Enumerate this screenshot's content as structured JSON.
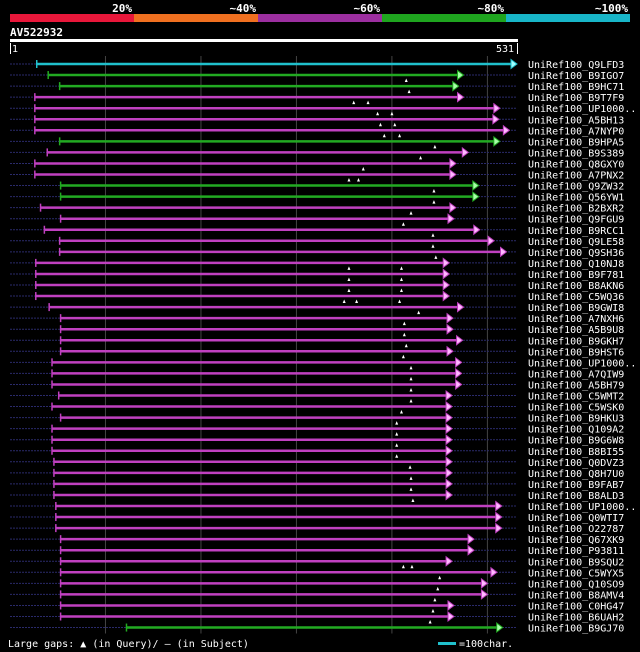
{
  "chart_data": {
    "type": "alignment-overview",
    "query_id": "AV522932",
    "query_start_label": "1",
    "query_end_label": "531",
    "query_length": 531,
    "identity_legend": [
      {
        "label": "20%",
        "color": "#e8173a"
      },
      {
        "label": "~40%",
        "color": "#f07020"
      },
      {
        "label": "~60%",
        "color": "#9c2fa0"
      },
      {
        "label": "~80%",
        "color": "#1fa51f"
      },
      {
        "label": "~100%",
        "color": "#18b5c8"
      }
    ],
    "colors": {
      "pink": "#c040c0",
      "green": "#22aa22",
      "cyan": "#20c0cc",
      "arrow_fill": "#ffb8ff",
      "arrow_fill_green": "#a8ffa8",
      "arrow_fill_cyan": "#a0ffff",
      "dotted": "#2a2a6a",
      "grid": "#444444"
    },
    "grid_positions": [
      100,
      200,
      300,
      400,
      500
    ],
    "hits": [
      {
        "name": "UniRef100_Q9LFD3",
        "color": "cyan",
        "start": 28,
        "end": 531,
        "gaps": []
      },
      {
        "name": "UniRef100_B9IGO7",
        "color": "green",
        "start": 40,
        "end": 475,
        "gaps": [
          415
        ]
      },
      {
        "name": "UniRef100_B9HC71",
        "color": "green",
        "start": 52,
        "end": 470,
        "gaps": [
          418
        ]
      },
      {
        "name": "UniRef100_B9T7F9",
        "color": "pink",
        "start": 26,
        "end": 475,
        "gaps": [
          360,
          375
        ]
      },
      {
        "name": "UniRef100_UP1000..",
        "color": "pink",
        "start": 26,
        "end": 513,
        "gaps": [
          385,
          400
        ]
      },
      {
        "name": "UniRef100_A5BH13",
        "color": "pink",
        "start": 26,
        "end": 512,
        "gaps": [
          388,
          403
        ]
      },
      {
        "name": "UniRef100_A7NYP0",
        "color": "pink",
        "start": 26,
        "end": 523,
        "gaps": [
          392,
          408
        ]
      },
      {
        "name": "UniRef100_B9HPA5",
        "color": "green",
        "start": 52,
        "end": 513,
        "gaps": [
          445
        ]
      },
      {
        "name": "UniRef100_B9S389",
        "color": "pink",
        "start": 39,
        "end": 480,
        "gaps": [
          430
        ]
      },
      {
        "name": "UniRef100_Q8GXY0",
        "color": "pink",
        "start": 26,
        "end": 467,
        "gaps": [
          370
        ]
      },
      {
        "name": "UniRef100_A7PNX2",
        "color": "pink",
        "start": 26,
        "end": 467,
        "gaps": [
          355,
          365
        ]
      },
      {
        "name": "UniRef100_Q9ZW32",
        "color": "green",
        "start": 53,
        "end": 491,
        "gaps": [
          444
        ]
      },
      {
        "name": "UniRef100_Q56YW1",
        "color": "green",
        "start": 53,
        "end": 491,
        "gaps": [
          444
        ]
      },
      {
        "name": "UniRef100_B2BXR2",
        "color": "pink",
        "start": 32,
        "end": 467,
        "gaps": [
          420
        ]
      },
      {
        "name": "UniRef100_Q9FGU9",
        "color": "pink",
        "start": 53,
        "end": 465,
        "gaps": [
          412
        ]
      },
      {
        "name": "UniRef100_B9RCC1",
        "color": "pink",
        "start": 36,
        "end": 492,
        "gaps": [
          443
        ]
      },
      {
        "name": "UniRef100_Q9LE58",
        "color": "pink",
        "start": 52,
        "end": 507,
        "gaps": [
          443
        ]
      },
      {
        "name": "UniRef100_Q9SH36",
        "color": "pink",
        "start": 52,
        "end": 520,
        "gaps": [
          446
        ]
      },
      {
        "name": "UniRef100_Q10NJ8",
        "color": "pink",
        "start": 27,
        "end": 460,
        "gaps": [
          355,
          410
        ]
      },
      {
        "name": "UniRef100_B9F781",
        "color": "pink",
        "start": 27,
        "end": 460,
        "gaps": [
          355,
          410
        ]
      },
      {
        "name": "UniRef100_B8AKN6",
        "color": "pink",
        "start": 27,
        "end": 460,
        "gaps": [
          355,
          410
        ]
      },
      {
        "name": "UniRef100_C5WQ36",
        "color": "pink",
        "start": 27,
        "end": 460,
        "gaps": [
          350,
          363,
          408
        ]
      },
      {
        "name": "UniRef100_B9GWI8",
        "color": "pink",
        "start": 41,
        "end": 475,
        "gaps": [
          428
        ]
      },
      {
        "name": "UniRef100_A7NXH6",
        "color": "pink",
        "start": 53,
        "end": 464,
        "gaps": [
          413
        ]
      },
      {
        "name": "UniRef100_A5B9U8",
        "color": "pink",
        "start": 53,
        "end": 464,
        "gaps": [
          413
        ]
      },
      {
        "name": "UniRef100_B9GKH7",
        "color": "pink",
        "start": 53,
        "end": 474,
        "gaps": [
          415
        ]
      },
      {
        "name": "UniRef100_B9HST6",
        "color": "pink",
        "start": 53,
        "end": 464,
        "gaps": [
          412
        ]
      },
      {
        "name": "UniRef100_UP1000..",
        "color": "pink",
        "start": 44,
        "end": 473,
        "gaps": [
          420
        ]
      },
      {
        "name": "UniRef100_A7QIW9",
        "color": "pink",
        "start": 44,
        "end": 473,
        "gaps": [
          420
        ]
      },
      {
        "name": "UniRef100_A5BH79",
        "color": "pink",
        "start": 44,
        "end": 473,
        "gaps": [
          420
        ]
      },
      {
        "name": "UniRef100_C5WMT2",
        "color": "pink",
        "start": 51,
        "end": 463,
        "gaps": [
          420
        ]
      },
      {
        "name": "UniRef100_C5WSK0",
        "color": "pink",
        "start": 44,
        "end": 463,
        "gaps": [
          410
        ]
      },
      {
        "name": "UniRef100_B9HKU3",
        "color": "pink",
        "start": 53,
        "end": 463,
        "gaps": [
          405
        ]
      },
      {
        "name": "UniRef100_Q109A2",
        "color": "pink",
        "start": 44,
        "end": 463,
        "gaps": [
          405
        ]
      },
      {
        "name": "UniRef100_B9G6W8",
        "color": "pink",
        "start": 44,
        "end": 463,
        "gaps": [
          405
        ]
      },
      {
        "name": "UniRef100_B8BI55",
        "color": "pink",
        "start": 44,
        "end": 463,
        "gaps": [
          405
        ]
      },
      {
        "name": "UniRef100_Q0DVZ3",
        "color": "pink",
        "start": 46,
        "end": 463,
        "gaps": [
          419
        ]
      },
      {
        "name": "UniRef100_Q8H7U0",
        "color": "pink",
        "start": 46,
        "end": 463,
        "gaps": [
          420
        ]
      },
      {
        "name": "UniRef100_B9FAB7",
        "color": "pink",
        "start": 46,
        "end": 463,
        "gaps": [
          420
        ]
      },
      {
        "name": "UniRef100_B8ALD3",
        "color": "pink",
        "start": 46,
        "end": 463,
        "gaps": [
          422
        ]
      },
      {
        "name": "UniRef100_UP1000..",
        "color": "pink",
        "start": 48,
        "end": 515,
        "gaps": []
      },
      {
        "name": "UniRef100_Q0WTI7",
        "color": "pink",
        "start": 48,
        "end": 515,
        "gaps": []
      },
      {
        "name": "UniRef100_O22787",
        "color": "pink",
        "start": 48,
        "end": 515,
        "gaps": []
      },
      {
        "name": "UniRef100_Q67XK9",
        "color": "pink",
        "start": 53,
        "end": 486,
        "gaps": []
      },
      {
        "name": "UniRef100_P93811",
        "color": "pink",
        "start": 53,
        "end": 486,
        "gaps": []
      },
      {
        "name": "UniRef100_B9SQU2",
        "color": "pink",
        "start": 53,
        "end": 463,
        "gaps": [
          412,
          421
        ]
      },
      {
        "name": "UniRef100_C5WYX5",
        "color": "pink",
        "start": 53,
        "end": 510,
        "gaps": [
          450
        ]
      },
      {
        "name": "UniRef100_Q10SO9",
        "color": "pink",
        "start": 53,
        "end": 500,
        "gaps": [
          448
        ]
      },
      {
        "name": "UniRef100_B8AMV4",
        "color": "pink",
        "start": 53,
        "end": 500,
        "gaps": [
          445
        ]
      },
      {
        "name": "UniRef100_C0HG47",
        "color": "pink",
        "start": 53,
        "end": 465,
        "gaps": [
          443
        ]
      },
      {
        "name": "UniRef100_B6UAH2",
        "color": "pink",
        "start": 53,
        "end": 465,
        "gaps": [
          440
        ]
      },
      {
        "name": "UniRef100_B9GJ70",
        "color": "green",
        "start": 122,
        "end": 516,
        "gaps": []
      }
    ]
  },
  "footer": {
    "gaps_prefix": "Large gaps:",
    "gaps_in_query": "(in Query)/",
    "gaps_dash": "–",
    "gaps_in_subject": "(in Subject)",
    "scale_label": "=100char."
  }
}
